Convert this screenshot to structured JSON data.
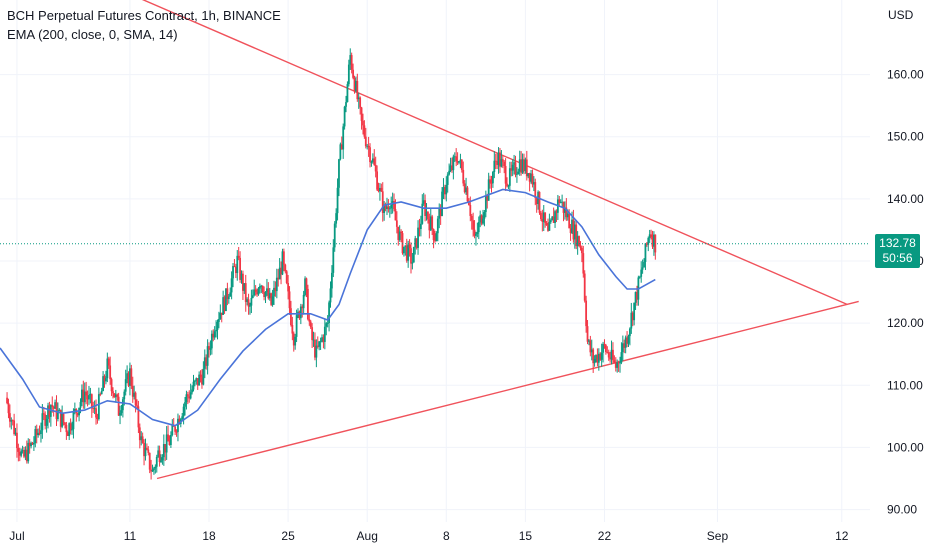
{
  "legend": {
    "title": "BCH Perpetual Futures Contract, 1h, BINANCE",
    "indicator": "EMA (200, close, 0, SMA, 14)"
  },
  "price_badge": {
    "price": "132.78",
    "countdown": "50:56"
  },
  "colors": {
    "up": "#089981",
    "down": "#f23645",
    "ema": "#4a74d9",
    "trendline": "#f0525b",
    "grid": "#f0f3fa",
    "current_price_line": "#089981"
  },
  "chart_data": {
    "type": "candlestick",
    "currency_label": "USD",
    "x_axis_ticks": [
      {
        "label": "Jul",
        "day": 0
      },
      {
        "label": "11",
        "day": 10
      },
      {
        "label": "18",
        "day": 17
      },
      {
        "label": "25",
        "day": 24
      },
      {
        "label": "Aug",
        "day": 31
      },
      {
        "label": "8",
        "day": 38
      },
      {
        "label": "15",
        "day": 45
      },
      {
        "label": "22",
        "day": 52
      },
      {
        "label": "Sep",
        "day": 62
      },
      {
        "label": "12",
        "day": 73
      }
    ],
    "y_axis_ticks": [
      "160.00",
      "150.00",
      "140.00",
      "130.00",
      "120.00",
      "110.00",
      "100.00",
      "90.00"
    ],
    "ylim": [
      88,
      172
    ],
    "xlim_days": [
      -1.5,
      75.5
    ],
    "current_price": 132.78,
    "price_path": [
      [
        -1.0,
        108
      ],
      [
        0.5,
        98
      ],
      [
        1.5,
        101
      ],
      [
        3.0,
        107
      ],
      [
        4.5,
        103
      ],
      [
        6.0,
        109
      ],
      [
        7.0,
        105
      ],
      [
        8.0,
        113
      ],
      [
        9.0,
        106
      ],
      [
        10.0,
        112
      ],
      [
        11.0,
        101
      ],
      [
        12.0,
        96
      ],
      [
        12.5,
        99
      ],
      [
        13.5,
        101
      ],
      [
        15.0,
        108
      ],
      [
        16.5,
        112
      ],
      [
        17.5,
        120
      ],
      [
        18.5,
        124
      ],
      [
        19.5,
        130
      ],
      [
        20.5,
        122
      ],
      [
        21.5,
        127
      ],
      [
        22.5,
        123
      ],
      [
        23.5,
        130
      ],
      [
        24.5,
        118
      ],
      [
        25.5,
        126
      ],
      [
        26.0,
        118
      ],
      [
        26.5,
        115
      ],
      [
        27.5,
        120
      ],
      [
        28.5,
        145
      ],
      [
        29.5,
        163
      ],
      [
        30.5,
        152
      ],
      [
        31.5,
        146
      ],
      [
        32.5,
        138
      ],
      [
        33.0,
        140
      ],
      [
        34.0,
        133
      ],
      [
        35.0,
        130
      ],
      [
        36.0,
        139
      ],
      [
        37.0,
        134
      ],
      [
        38.0,
        143
      ],
      [
        39.0,
        147
      ],
      [
        40.0,
        140
      ],
      [
        40.5,
        133
      ],
      [
        41.5,
        140
      ],
      [
        42.5,
        147
      ],
      [
        43.5,
        143
      ],
      [
        44.5,
        146
      ],
      [
        45.5,
        144
      ],
      [
        46.5,
        137
      ],
      [
        47.0,
        134
      ],
      [
        48.0,
        140
      ],
      [
        49.0,
        136
      ],
      [
        50.0,
        132
      ],
      [
        50.5,
        117
      ],
      [
        51.0,
        114
      ],
      [
        52.0,
        116
      ],
      [
        53.0,
        113
      ],
      [
        54.0,
        118
      ],
      [
        54.5,
        122
      ],
      [
        55.5,
        130
      ],
      [
        56.0,
        135
      ],
      [
        56.5,
        132.78
      ]
    ],
    "ema_path": [
      [
        -1.5,
        116
      ],
      [
        0.5,
        111
      ],
      [
        2.0,
        106.5
      ],
      [
        4.0,
        105.5
      ],
      [
        6.0,
        106
      ],
      [
        8.0,
        107.5
      ],
      [
        10.0,
        107
      ],
      [
        12.0,
        104.5
      ],
      [
        14.0,
        103.5
      ],
      [
        16.0,
        106
      ],
      [
        18.0,
        111
      ],
      [
        20.0,
        115.5
      ],
      [
        22.0,
        119
      ],
      [
        24.0,
        121.5
      ],
      [
        26.0,
        121.5
      ],
      [
        27.5,
        120.5
      ],
      [
        28.5,
        123
      ],
      [
        29.5,
        128
      ],
      [
        31.0,
        135
      ],
      [
        32.5,
        139
      ],
      [
        34.0,
        139.5
      ],
      [
        36.0,
        138.5
      ],
      [
        38.0,
        138.5
      ],
      [
        40.0,
        139.5
      ],
      [
        41.5,
        140.5
      ],
      [
        43.0,
        141.5
      ],
      [
        45.0,
        141
      ],
      [
        47.0,
        139.5
      ],
      [
        48.5,
        138.5
      ],
      [
        50.0,
        135.5
      ],
      [
        51.5,
        131
      ],
      [
        53.0,
        127.5
      ],
      [
        54.0,
        125.5
      ],
      [
        55.0,
        125.5
      ],
      [
        56.5,
        127
      ]
    ],
    "trendlines": [
      {
        "name": "resistance",
        "from": {
          "day": -1.5,
          "price": 182
        },
        "to": {
          "day": 73.5,
          "price": 123
        }
      },
      {
        "name": "support",
        "from": {
          "day": 12.4,
          "price": 95
        },
        "to": {
          "day": 74.5,
          "price": 123.5
        }
      }
    ]
  }
}
